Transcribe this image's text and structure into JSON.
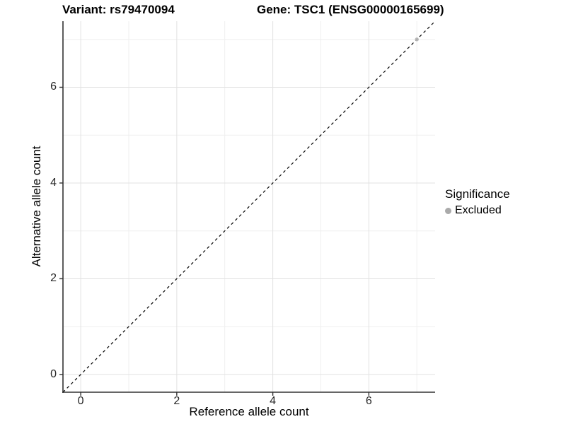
{
  "header": {
    "variant_title": "Variant: rs79470094",
    "gene_title": "Gene: TSC1 (ENSG00000165699)"
  },
  "axes": {
    "x_label": "Reference allele count",
    "y_label": "Alternative allele count",
    "x_tick_labels": [
      "0",
      "2",
      "4",
      "6"
    ],
    "y_tick_labels": [
      "0",
      "2",
      "4",
      "6"
    ]
  },
  "legend": {
    "title": "Significance",
    "items": [
      {
        "label": "Excluded",
        "color": "#aaaaaa"
      }
    ]
  },
  "colors": {
    "grid_major": "#e2e2e2",
    "grid_minor": "#efefef",
    "axis_line": "#333333",
    "tick_mark": "#333333",
    "tick_text": "#262626",
    "reference_line": "#000000"
  },
  "chart_data": {
    "type": "scatter",
    "title": "Variant: rs79470094 | Gene: TSC1 (ENSG00000165699)",
    "xlabel": "Reference allele count",
    "ylabel": "Alternative allele count",
    "xlim": [
      -0.37,
      7.38
    ],
    "ylim": [
      -0.37,
      7.38
    ],
    "x_ticks": [
      0,
      2,
      4,
      6
    ],
    "y_ticks": [
      0,
      2,
      4,
      6
    ],
    "x_minor_gridlines": [
      1,
      3,
      5,
      7
    ],
    "y_minor_gridlines": [
      1,
      3,
      5,
      7
    ],
    "grid": true,
    "legend_position": "right",
    "series": [
      {
        "name": "Excluded",
        "color": "#b3b3b3",
        "points": [
          [
            7,
            7
          ]
        ]
      }
    ],
    "reference_line": {
      "slope": 1,
      "intercept": 0,
      "style": "dashed",
      "color": "#000000"
    }
  }
}
